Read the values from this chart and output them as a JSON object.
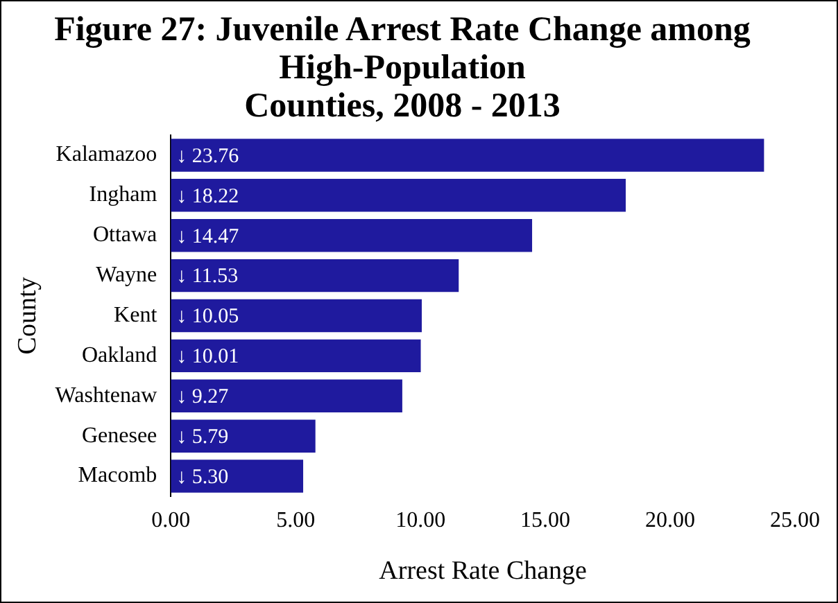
{
  "chart_data": {
    "type": "bar",
    "orientation": "horizontal",
    "title": "Figure 27: Juvenile Arrest Rate Change among High-Population Counties, 2008 - 2013",
    "xlabel": "Arrest Rate Change",
    "ylabel": "County",
    "categories": [
      "Kalamazoo",
      "Ingham",
      "Ottawa",
      "Wayne",
      "Kent",
      "Oakland",
      "Washtenaw",
      "Genesee",
      "Macomb"
    ],
    "values": [
      23.76,
      18.22,
      14.47,
      11.53,
      10.05,
      10.01,
      9.27,
      5.79,
      5.3
    ],
    "value_labels": [
      "↓ 23.76",
      "↓ 18.22",
      "↓ 14.47",
      "↓ 11.53",
      "↓ 10.05",
      "↓ 10.01",
      "↓ 9.27",
      "↓ 5.79",
      "↓ 5.30"
    ],
    "color": "#1f1a9e",
    "xlim": [
      0,
      25
    ],
    "xticks": [
      {
        "value": 0,
        "label": "0.00"
      },
      {
        "value": 5,
        "label": "5.00"
      },
      {
        "value": 10,
        "label": "10.00"
      },
      {
        "value": 15,
        "label": "15.00"
      },
      {
        "value": 20,
        "label": "20.00"
      },
      {
        "value": 25,
        "label": "25.00"
      }
    ],
    "grid": false,
    "legend": false
  }
}
